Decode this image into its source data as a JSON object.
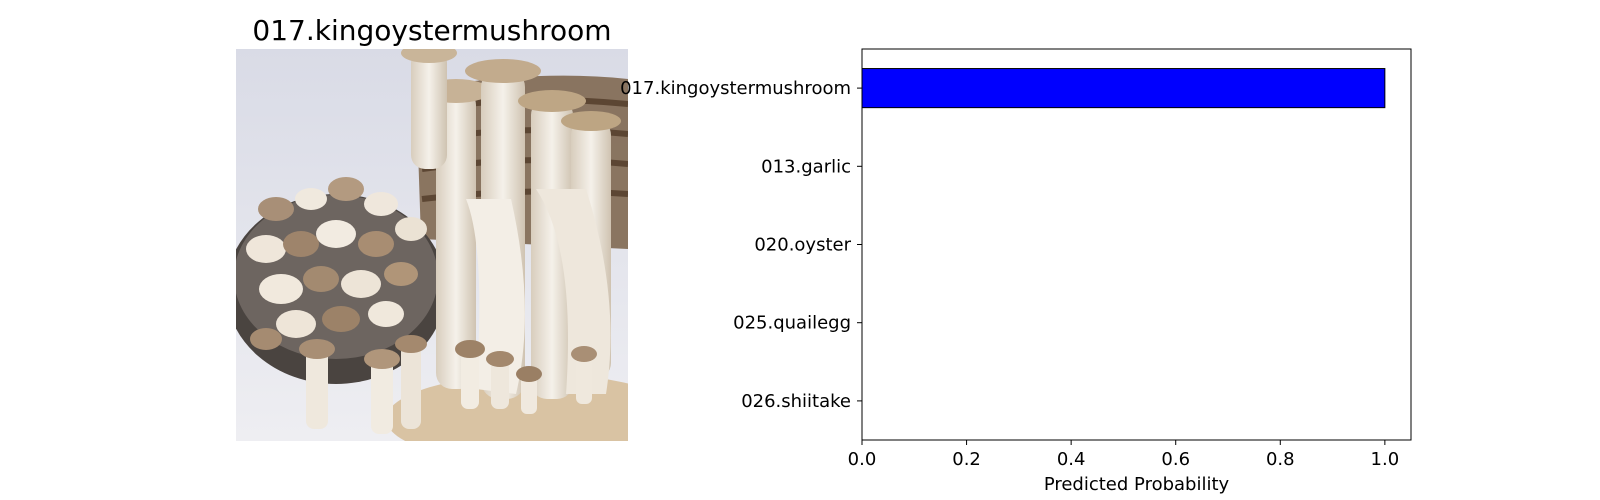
{
  "image_panel": {
    "title": "017.kingoystermushroom",
    "photo_icon": "king-oyster-mushroom-photo-icon"
  },
  "chart_data": {
    "type": "bar",
    "orientation": "horizontal",
    "categories": [
      "017.kingoystermushroom",
      "013.garlic",
      "020.oyster",
      "025.quailegg",
      "026.shiitake"
    ],
    "values": [
      1.0,
      0.0,
      0.0,
      0.0,
      0.0
    ],
    "xlabel": "Predicted Probability",
    "ylabel": "",
    "xlim": [
      0,
      1.05
    ],
    "xticks": [
      "0.0",
      "0.2",
      "0.4",
      "0.6",
      "0.8",
      "1.0"
    ],
    "xtick_values": [
      0,
      0.2,
      0.4,
      0.6,
      0.8,
      1.0
    ],
    "bar_color": "#0000ff",
    "grid": false,
    "legend": "none"
  }
}
